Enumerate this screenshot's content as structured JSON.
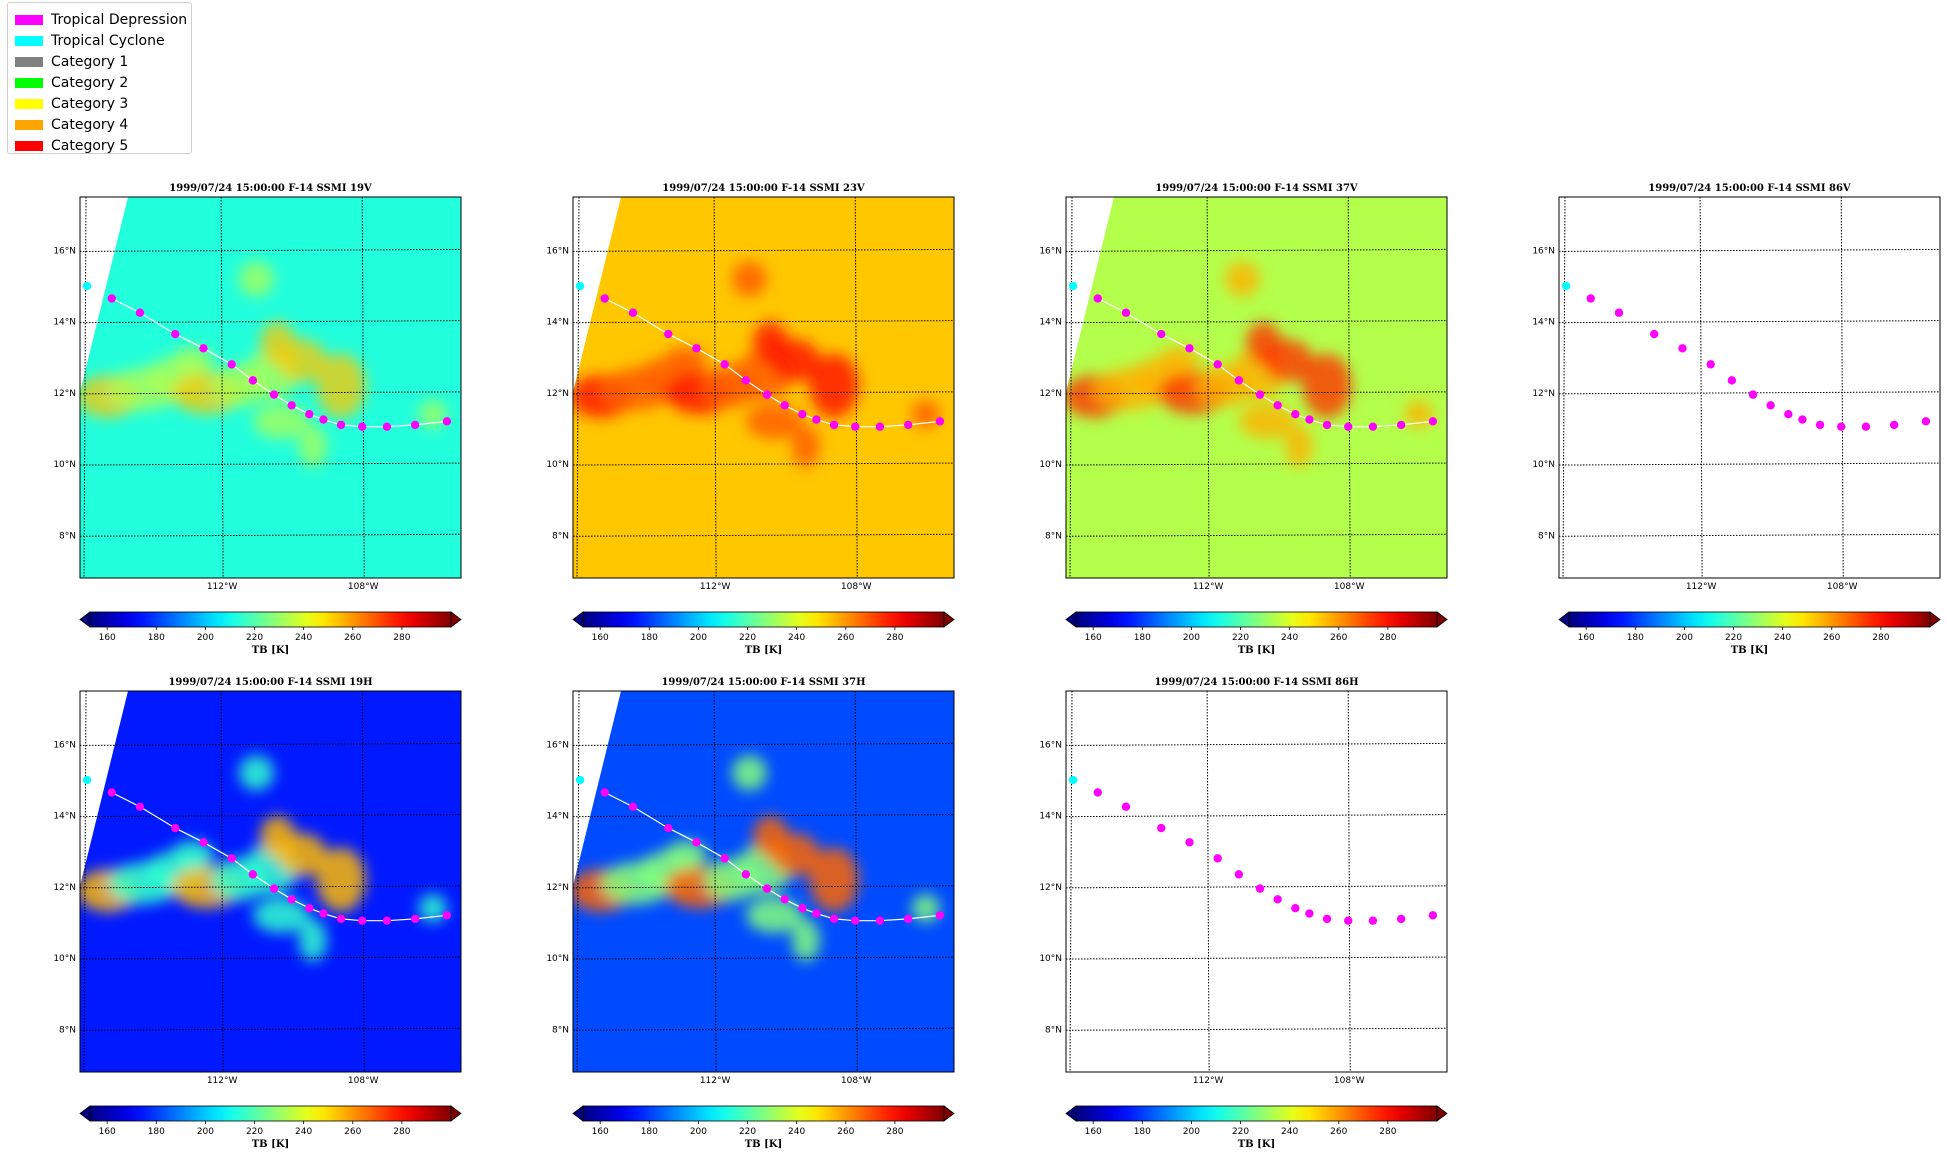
{
  "legend": [
    {
      "label": "Tropical Depression",
      "color": "#ff00ff"
    },
    {
      "label": "Tropical Cyclone",
      "color": "#00ffff"
    },
    {
      "label": "Category 1",
      "color": "#808080"
    },
    {
      "label": "Category 2",
      "color": "#00ff00"
    },
    {
      "label": "Category 3",
      "color": "#ffff00"
    },
    {
      "label": "Category 4",
      "color": "#ffa500"
    },
    {
      "label": "Category 5",
      "color": "#ff0000"
    }
  ],
  "chart_data": {
    "type": "scatter",
    "xlim": [
      -116,
      -105.2
    ],
    "ylim": [
      6.8,
      17.5
    ],
    "lat_ticks": [
      8,
      10,
      12,
      14,
      16
    ],
    "lat_tick_labels": [
      "8°N",
      "10°N",
      "12°N",
      "14°N",
      "16°N"
    ],
    "lon_ticks": [
      -112,
      -108
    ],
    "lon_tick_labels": [
      "112°W",
      "108°W"
    ],
    "track_lon": [
      -115.8,
      -115.1,
      -114.3,
      -113.3,
      -112.5,
      -111.7,
      -111.1,
      -110.5,
      -110.0,
      -109.5,
      -109.1,
      -108.6,
      -108.0,
      -107.3,
      -106.5,
      -105.6
    ],
    "track_lat": [
      15.0,
      14.65,
      14.25,
      13.65,
      13.25,
      12.8,
      12.35,
      11.95,
      11.65,
      11.4,
      11.25,
      11.1,
      11.05,
      11.05,
      11.1,
      11.2
    ],
    "track_category": [
      "Tropical Cyclone",
      "Tropical Depression",
      "Tropical Depression",
      "Tropical Depression",
      "Tropical Depression",
      "Tropical Depression",
      "Tropical Depression",
      "Tropical Depression",
      "Tropical Depression",
      "Tropical Depression",
      "Tropical Depression",
      "Tropical Depression",
      "Tropical Depression",
      "Tropical Depression",
      "Tropical Depression",
      "Tropical Depression"
    ],
    "colorbar": {
      "label": "TB [K]",
      "ticks": [
        160,
        180,
        200,
        220,
        240,
        260,
        280
      ],
      "range": [
        153,
        300
      ],
      "colormap": "jet"
    },
    "panels": [
      {
        "title": "1999/07/24 15:00:00  F-14 SSMI 19V",
        "background_tb": 213,
        "track_line": true
      },
      {
        "title": "1999/07/24 15:00:00  F-14 SSMI 23V",
        "background_tb": 253,
        "track_line": true
      },
      {
        "title": "1999/07/24 15:00:00  F-14 SSMI 37V",
        "background_tb": 234,
        "track_line": true
      },
      {
        "title": "1999/07/24 15:00:00  F-14 SSMI 86V",
        "background_tb": null,
        "track_line": false
      },
      {
        "title": "1999/07/24 15:00:00  F-14 SSMI 19H",
        "background_tb": 175,
        "track_line": true
      },
      {
        "title": "1999/07/24 15:00:00  F-14 SSMI 37H",
        "background_tb": 182,
        "track_line": true
      },
      {
        "title": "1999/07/24 15:00:00  F-14 SSMI 86H",
        "background_tb": null,
        "track_line": false
      }
    ]
  }
}
